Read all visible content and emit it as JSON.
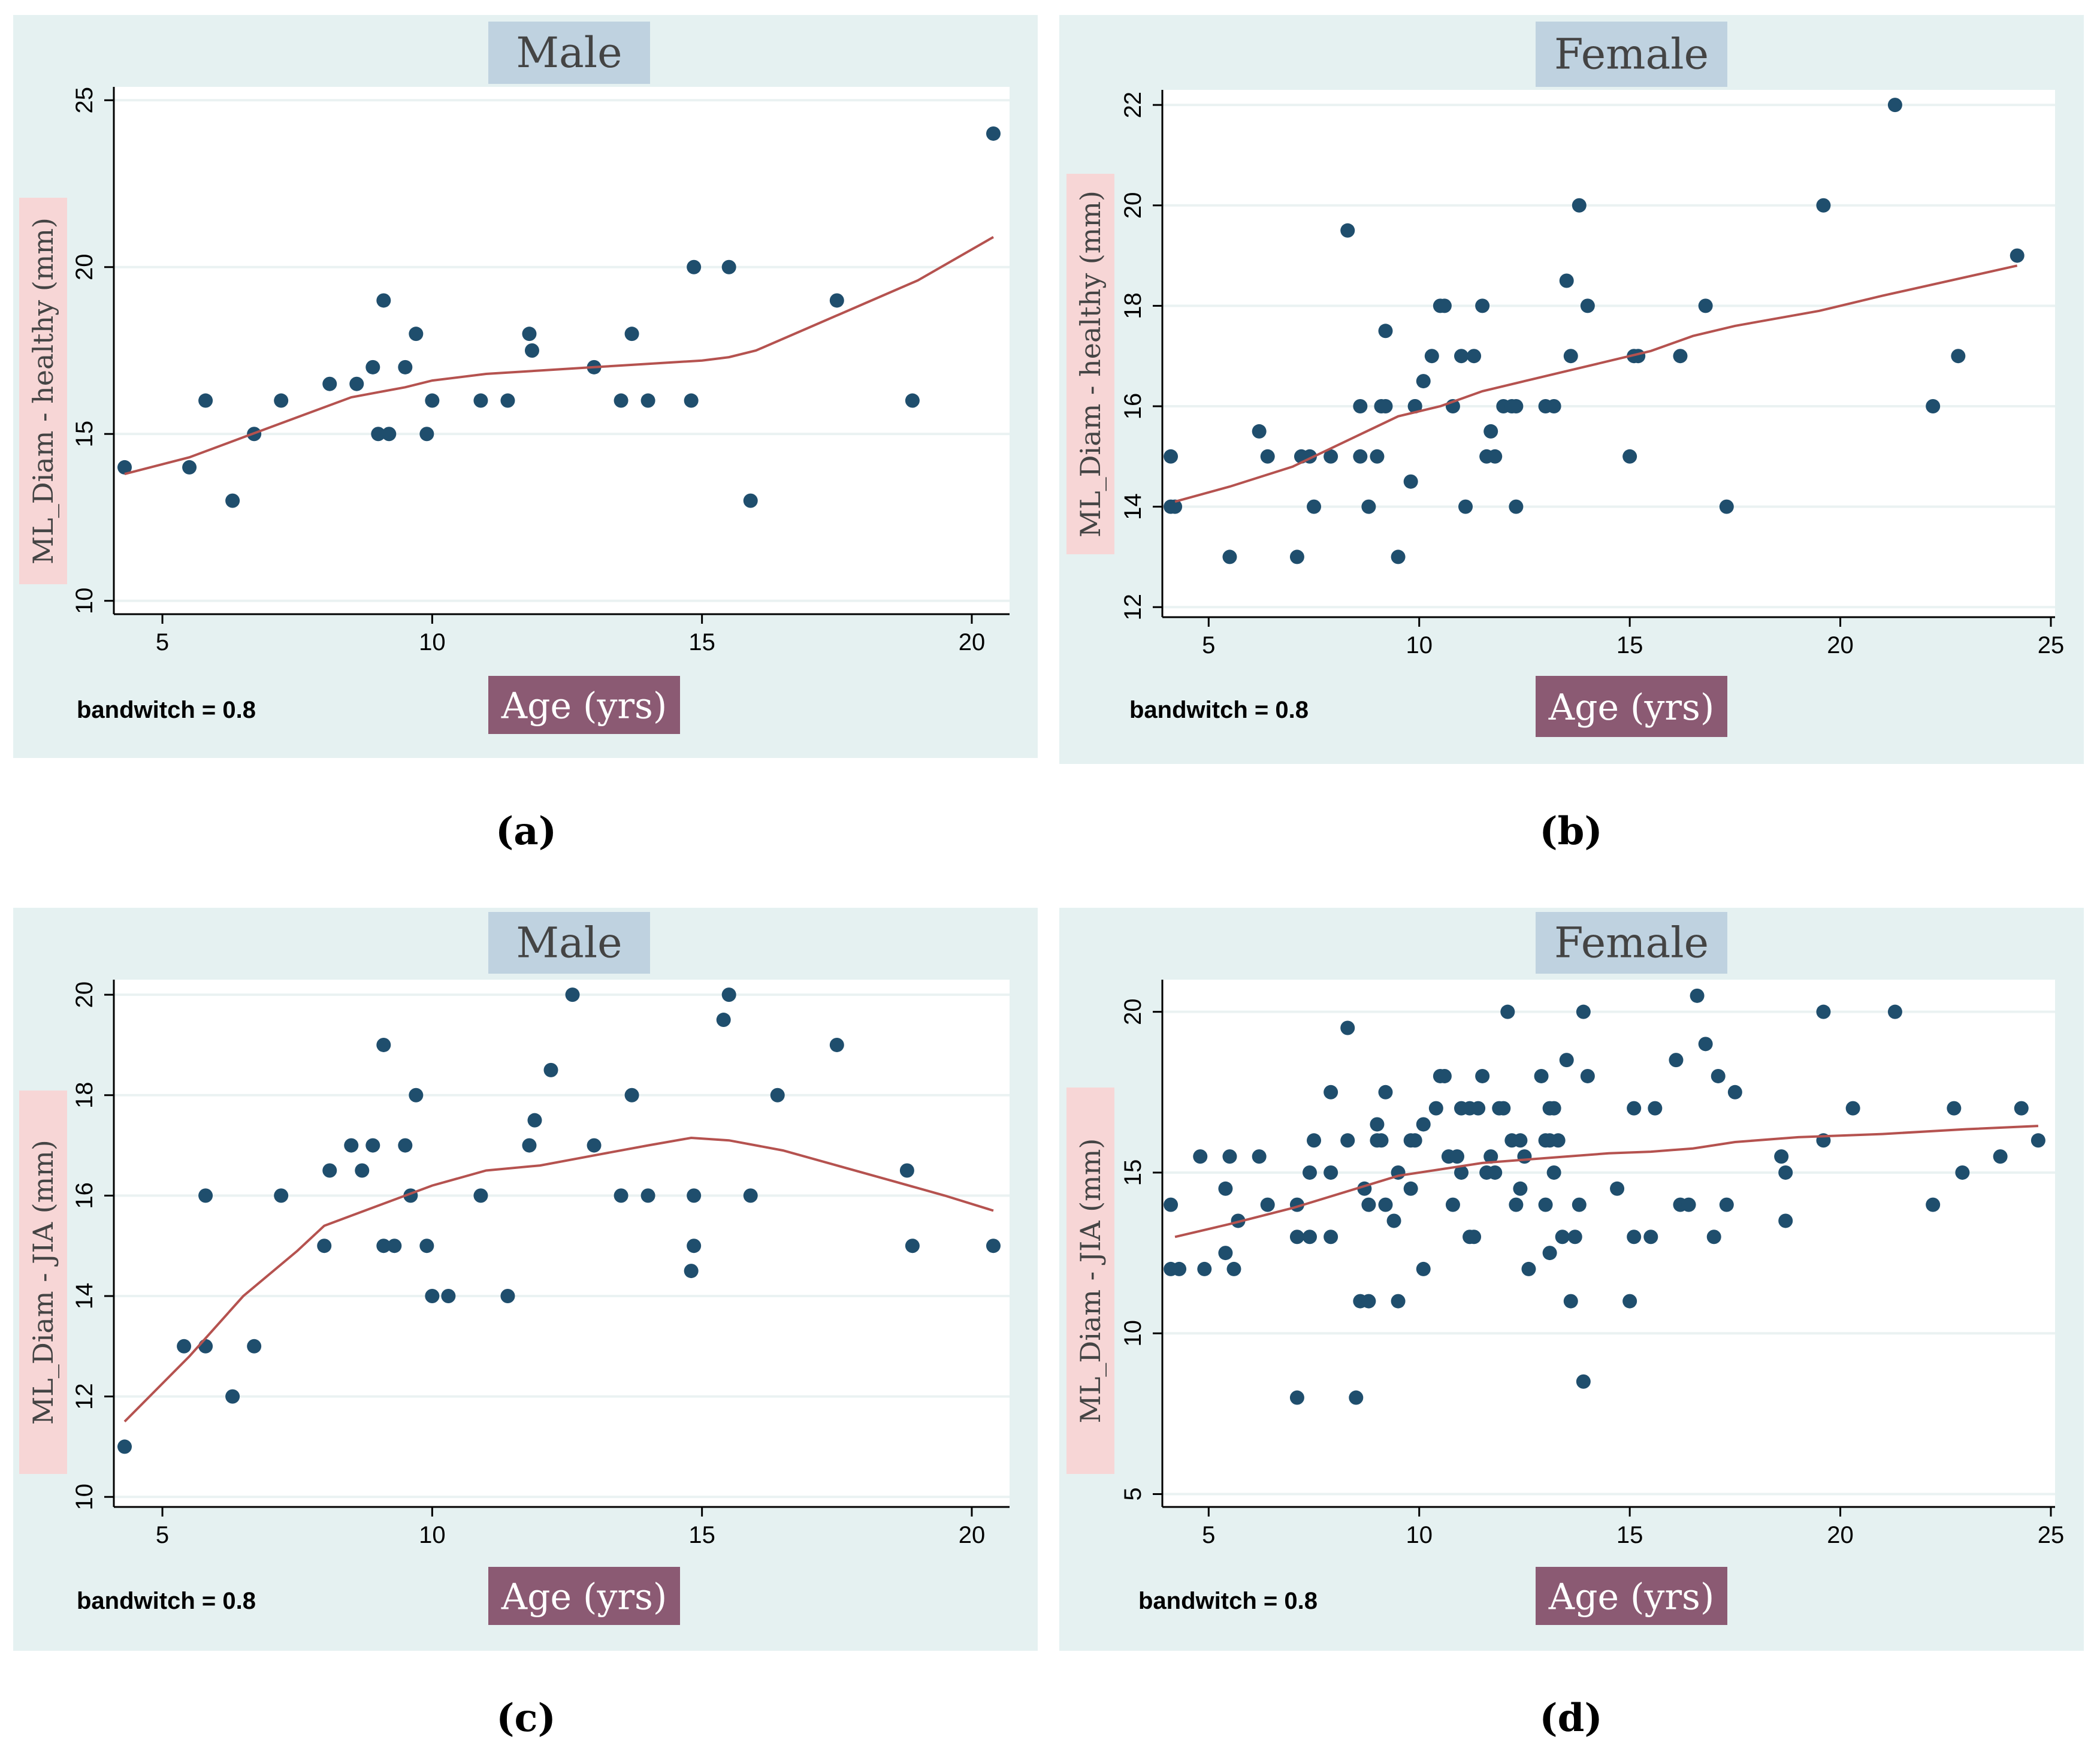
{
  "chart_data": [
    {
      "id": "a",
      "type": "scatter",
      "title": "Male",
      "xlabel": "Age (yrs)",
      "ylabel": "ML_Diam - healthy (mm)",
      "note": "bandwitch = 0.8",
      "caption": "(a)",
      "xlim": [
        4.1,
        20.7
      ],
      "ylim": [
        9.6,
        25.4
      ],
      "xticks": [
        5,
        10,
        15,
        20
      ],
      "yticks": [
        10,
        15,
        20,
        25
      ],
      "grid": true,
      "colors": {
        "points": "#1f4e6d",
        "curve": "#b5524f"
      },
      "points": [
        [
          4.3,
          14
        ],
        [
          5.5,
          14
        ],
        [
          5.8,
          16
        ],
        [
          6.3,
          13
        ],
        [
          6.7,
          15
        ],
        [
          7.2,
          16
        ],
        [
          8.1,
          16.5
        ],
        [
          8.6,
          16.5
        ],
        [
          8.9,
          17
        ],
        [
          9.0,
          15
        ],
        [
          9.1,
          19
        ],
        [
          9.2,
          15
        ],
        [
          9.5,
          17
        ],
        [
          9.7,
          18
        ],
        [
          9.9,
          15
        ],
        [
          10.0,
          16
        ],
        [
          10.9,
          16
        ],
        [
          11.4,
          16
        ],
        [
          11.8,
          18
        ],
        [
          11.85,
          17.5
        ],
        [
          13.0,
          17
        ],
        [
          13.5,
          16
        ],
        [
          13.7,
          18
        ],
        [
          14.0,
          16
        ],
        [
          14.8,
          16
        ],
        [
          14.85,
          20
        ],
        [
          15.5,
          20
        ],
        [
          15.9,
          13
        ],
        [
          17.5,
          19
        ],
        [
          18.9,
          16
        ],
        [
          20.4,
          24
        ]
      ],
      "curve": [
        [
          4.3,
          13.8
        ],
        [
          5.5,
          14.3
        ],
        [
          6.5,
          14.9
        ],
        [
          7.5,
          15.5
        ],
        [
          8.5,
          16.1
        ],
        [
          9.5,
          16.4
        ],
        [
          10.0,
          16.6
        ],
        [
          11.0,
          16.8
        ],
        [
          12.0,
          16.9
        ],
        [
          13.0,
          17.0
        ],
        [
          14.0,
          17.1
        ],
        [
          15.0,
          17.2
        ],
        [
          15.5,
          17.3
        ],
        [
          16.0,
          17.5
        ],
        [
          17.0,
          18.2
        ],
        [
          18.0,
          18.9
        ],
        [
          19.0,
          19.6
        ],
        [
          20.4,
          20.9
        ]
      ]
    },
    {
      "id": "b",
      "type": "scatter",
      "title": "Female",
      "xlabel": "Age (yrs)",
      "ylabel": "ML_Diam - healthy (mm)",
      "note": "bandwitch = 0.8",
      "caption": "(b)",
      "xlim": [
        3.9,
        25.1
      ],
      "ylim": [
        11.8,
        22.3
      ],
      "xticks": [
        5,
        10,
        15,
        20,
        25
      ],
      "yticks": [
        12,
        14,
        16,
        18,
        20,
        22
      ],
      "grid": true,
      "colors": {
        "points": "#1f4e6d",
        "curve": "#b5524f"
      },
      "points": [
        [
          4.1,
          15
        ],
        [
          4.1,
          14
        ],
        [
          4.2,
          14
        ],
        [
          5.5,
          13
        ],
        [
          6.2,
          15.5
        ],
        [
          6.4,
          15
        ],
        [
          7.1,
          13
        ],
        [
          7.2,
          15
        ],
        [
          7.4,
          15
        ],
        [
          7.5,
          14
        ],
        [
          7.9,
          15
        ],
        [
          8.3,
          19.5
        ],
        [
          8.6,
          15
        ],
        [
          8.6,
          16
        ],
        [
          8.8,
          14
        ],
        [
          9.0,
          15
        ],
        [
          9.1,
          16
        ],
        [
          9.2,
          16
        ],
        [
          9.2,
          17.5
        ],
        [
          9.5,
          13
        ],
        [
          9.8,
          14.5
        ],
        [
          9.9,
          16
        ],
        [
          9.9,
          16
        ],
        [
          10.1,
          16.5
        ],
        [
          10.3,
          17
        ],
        [
          10.5,
          18
        ],
        [
          10.6,
          18
        ],
        [
          10.8,
          16
        ],
        [
          11.0,
          17
        ],
        [
          11.1,
          14
        ],
        [
          11.3,
          17
        ],
        [
          11.5,
          18
        ],
        [
          11.6,
          15
        ],
        [
          11.7,
          15.5
        ],
        [
          11.8,
          15
        ],
        [
          12.0,
          16
        ],
        [
          12.2,
          16
        ],
        [
          12.3,
          14
        ],
        [
          12.3,
          16
        ],
        [
          13.0,
          16
        ],
        [
          13.2,
          16
        ],
        [
          13.5,
          18.5
        ],
        [
          13.6,
          17
        ],
        [
          13.8,
          20
        ],
        [
          14.0,
          18
        ],
        [
          15.0,
          15
        ],
        [
          15.1,
          17
        ],
        [
          15.2,
          17
        ],
        [
          16.2,
          17
        ],
        [
          16.8,
          18
        ],
        [
          17.3,
          14
        ],
        [
          19.6,
          20
        ],
        [
          21.3,
          22
        ],
        [
          22.2,
          16
        ],
        [
          22.8,
          17
        ],
        [
          24.2,
          19
        ]
      ],
      "curve": [
        [
          4.2,
          14.1
        ],
        [
          5.5,
          14.4
        ],
        [
          7.0,
          14.8
        ],
        [
          8.5,
          15.4
        ],
        [
          9.5,
          15.8
        ],
        [
          10.5,
          16.0
        ],
        [
          11.5,
          16.3
        ],
        [
          12.5,
          16.5
        ],
        [
          13.5,
          16.7
        ],
        [
          14.5,
          16.9
        ],
        [
          15.5,
          17.1
        ],
        [
          16.5,
          17.4
        ],
        [
          17.5,
          17.6
        ],
        [
          19.5,
          17.9
        ],
        [
          21.0,
          18.2
        ],
        [
          24.2,
          18.8
        ]
      ]
    },
    {
      "id": "c",
      "type": "scatter",
      "title": "Male",
      "xlabel": "Age (yrs)",
      "ylabel": "ML_Diam - JIA (mm)",
      "note": "bandwitch = 0.8",
      "caption": "(c)",
      "xlim": [
        4.1,
        20.7
      ],
      "ylim": [
        9.8,
        20.3
      ],
      "xticks": [
        5,
        10,
        15,
        20
      ],
      "yticks": [
        10,
        12,
        14,
        16,
        18,
        20
      ],
      "grid": true,
      "colors": {
        "points": "#1f4e6d",
        "curve": "#b5524f"
      },
      "points": [
        [
          4.3,
          11
        ],
        [
          5.4,
          13
        ],
        [
          5.8,
          16
        ],
        [
          5.8,
          13
        ],
        [
          6.3,
          12
        ],
        [
          6.7,
          13
        ],
        [
          7.2,
          16
        ],
        [
          8.0,
          15
        ],
        [
          8.1,
          16.5
        ],
        [
          8.5,
          17
        ],
        [
          8.7,
          16.5
        ],
        [
          8.9,
          17
        ],
        [
          9.1,
          15
        ],
        [
          9.1,
          19
        ],
        [
          9.3,
          15
        ],
        [
          9.5,
          17
        ],
        [
          9.6,
          16
        ],
        [
          9.7,
          18
        ],
        [
          9.9,
          15
        ],
        [
          10.0,
          14
        ],
        [
          10.3,
          14
        ],
        [
          10.9,
          16
        ],
        [
          11.4,
          14
        ],
        [
          11.8,
          17
        ],
        [
          11.9,
          17.5
        ],
        [
          12.2,
          18.5
        ],
        [
          12.6,
          20
        ],
        [
          13.0,
          17
        ],
        [
          13.5,
          16
        ],
        [
          13.7,
          18
        ],
        [
          14.0,
          16
        ],
        [
          14.8,
          14.5
        ],
        [
          14.85,
          15
        ],
        [
          14.85,
          16
        ],
        [
          15.4,
          19.5
        ],
        [
          15.5,
          20
        ],
        [
          15.9,
          16
        ],
        [
          16.4,
          18
        ],
        [
          17.5,
          19
        ],
        [
          18.8,
          16.5
        ],
        [
          18.9,
          15
        ],
        [
          20.4,
          15
        ]
      ],
      "curve": [
        [
          4.3,
          11.5
        ],
        [
          5.5,
          12.8
        ],
        [
          6.5,
          14.0
        ],
        [
          7.5,
          14.9
        ],
        [
          8.0,
          15.4
        ],
        [
          9.0,
          15.8
        ],
        [
          10.0,
          16.2
        ],
        [
          11.0,
          16.5
        ],
        [
          12.0,
          16.6
        ],
        [
          13.0,
          16.8
        ],
        [
          14.0,
          17.0
        ],
        [
          14.8,
          17.15
        ],
        [
          15.5,
          17.1
        ],
        [
          16.5,
          16.9
        ],
        [
          17.5,
          16.6
        ],
        [
          18.5,
          16.3
        ],
        [
          19.5,
          16.0
        ],
        [
          20.4,
          15.7
        ]
      ]
    },
    {
      "id": "d",
      "type": "scatter",
      "title": "Female",
      "xlabel": "Age (yrs)",
      "ylabel": "ML_Diam - JIA (mm)",
      "note": "bandwitch = 0.8",
      "caption": "(d)",
      "xlim": [
        3.9,
        25.1
      ],
      "ylim": [
        4.6,
        21.0
      ],
      "xticks": [
        5,
        10,
        15,
        20,
        25
      ],
      "yticks": [
        5,
        10,
        15,
        20
      ],
      "grid": true,
      "colors": {
        "points": "#1f4e6d",
        "curve": "#b5524f"
      },
      "points": [
        [
          4.1,
          14
        ],
        [
          4.1,
          12
        ],
        [
          4.3,
          12
        ],
        [
          4.8,
          15.5
        ],
        [
          4.9,
          12
        ],
        [
          5.4,
          14.5
        ],
        [
          5.4,
          12.5
        ],
        [
          5.5,
          15.5
        ],
        [
          5.6,
          12
        ],
        [
          5.7,
          13.5
        ],
        [
          6.2,
          15.5
        ],
        [
          6.4,
          14
        ],
        [
          7.1,
          14
        ],
        [
          7.1,
          13
        ],
        [
          7.1,
          8
        ],
        [
          7.4,
          15
        ],
        [
          7.4,
          13
        ],
        [
          7.5,
          16
        ],
        [
          7.9,
          17.5
        ],
        [
          7.9,
          13
        ],
        [
          7.9,
          15
        ],
        [
          8.3,
          19.5
        ],
        [
          8.3,
          16
        ],
        [
          8.5,
          8
        ],
        [
          8.6,
          11
        ],
        [
          8.7,
          14.5
        ],
        [
          8.8,
          11
        ],
        [
          8.8,
          14
        ],
        [
          9.0,
          16
        ],
        [
          9.0,
          16.5
        ],
        [
          9.1,
          16
        ],
        [
          9.2,
          17.5
        ],
        [
          9.2,
          14
        ],
        [
          9.4,
          13.5
        ],
        [
          9.5,
          15
        ],
        [
          9.5,
          11
        ],
        [
          9.8,
          16
        ],
        [
          9.8,
          14.5
        ],
        [
          9.9,
          16
        ],
        [
          10.1,
          16.5
        ],
        [
          10.1,
          12
        ],
        [
          10.4,
          17
        ],
        [
          10.5,
          18
        ],
        [
          10.6,
          18
        ],
        [
          10.7,
          15.5
        ],
        [
          10.8,
          14
        ],
        [
          10.9,
          15.5
        ],
        [
          11.0,
          17
        ],
        [
          11.0,
          15
        ],
        [
          11.2,
          17
        ],
        [
          11.2,
          13
        ],
        [
          11.3,
          13
        ],
        [
          11.4,
          17
        ],
        [
          11.5,
          18
        ],
        [
          11.6,
          15
        ],
        [
          11.7,
          15.5
        ],
        [
          11.8,
          15
        ],
        [
          11.9,
          17
        ],
        [
          12.0,
          17
        ],
        [
          12.1,
          20
        ],
        [
          12.2,
          16
        ],
        [
          12.3,
          14
        ],
        [
          12.4,
          16
        ],
        [
          12.4,
          14.5
        ],
        [
          12.5,
          15.5
        ],
        [
          12.6,
          12
        ],
        [
          12.9,
          18
        ],
        [
          13.0,
          16
        ],
        [
          13.0,
          14
        ],
        [
          13.1,
          17
        ],
        [
          13.1,
          12.5
        ],
        [
          13.1,
          16
        ],
        [
          13.2,
          15
        ],
        [
          13.2,
          17
        ],
        [
          13.3,
          16
        ],
        [
          13.4,
          13
        ],
        [
          13.5,
          18.5
        ],
        [
          13.6,
          11
        ],
        [
          13.7,
          13
        ],
        [
          13.8,
          14
        ],
        [
          13.9,
          20
        ],
        [
          13.9,
          8.5
        ],
        [
          14.0,
          18
        ],
        [
          14.7,
          14.5
        ],
        [
          15.0,
          11
        ],
        [
          15.1,
          17
        ],
        [
          15.1,
          13
        ],
        [
          15.5,
          13
        ],
        [
          15.6,
          17
        ],
        [
          16.1,
          18.5
        ],
        [
          16.2,
          14
        ],
        [
          16.4,
          14
        ],
        [
          16.6,
          20.5
        ],
        [
          16.8,
          19
        ],
        [
          17.0,
          13
        ],
        [
          17.1,
          18
        ],
        [
          17.3,
          14
        ],
        [
          17.5,
          17.5
        ],
        [
          18.6,
          15.5
        ],
        [
          18.7,
          15
        ],
        [
          18.7,
          13.5
        ],
        [
          19.6,
          20
        ],
        [
          19.6,
          16
        ],
        [
          20.3,
          17
        ],
        [
          21.3,
          20
        ],
        [
          22.2,
          14
        ],
        [
          22.7,
          17
        ],
        [
          22.9,
          15
        ],
        [
          23.8,
          15.5
        ],
        [
          24.3,
          17
        ],
        [
          24.7,
          16
        ]
      ],
      "curve": [
        [
          4.2,
          13.0
        ],
        [
          5.5,
          13.4
        ],
        [
          7.0,
          13.9
        ],
        [
          8.5,
          14.5
        ],
        [
          9.5,
          14.9
        ],
        [
          10.5,
          15.1
        ],
        [
          11.5,
          15.3
        ],
        [
          12.5,
          15.4
        ],
        [
          13.5,
          15.5
        ],
        [
          14.5,
          15.6
        ],
        [
          15.5,
          15.65
        ],
        [
          16.5,
          15.75
        ],
        [
          17.5,
          15.95
        ],
        [
          19.0,
          16.1
        ],
        [
          21.0,
          16.2
        ],
        [
          23.0,
          16.35
        ],
        [
          24.7,
          16.45
        ]
      ]
    }
  ]
}
